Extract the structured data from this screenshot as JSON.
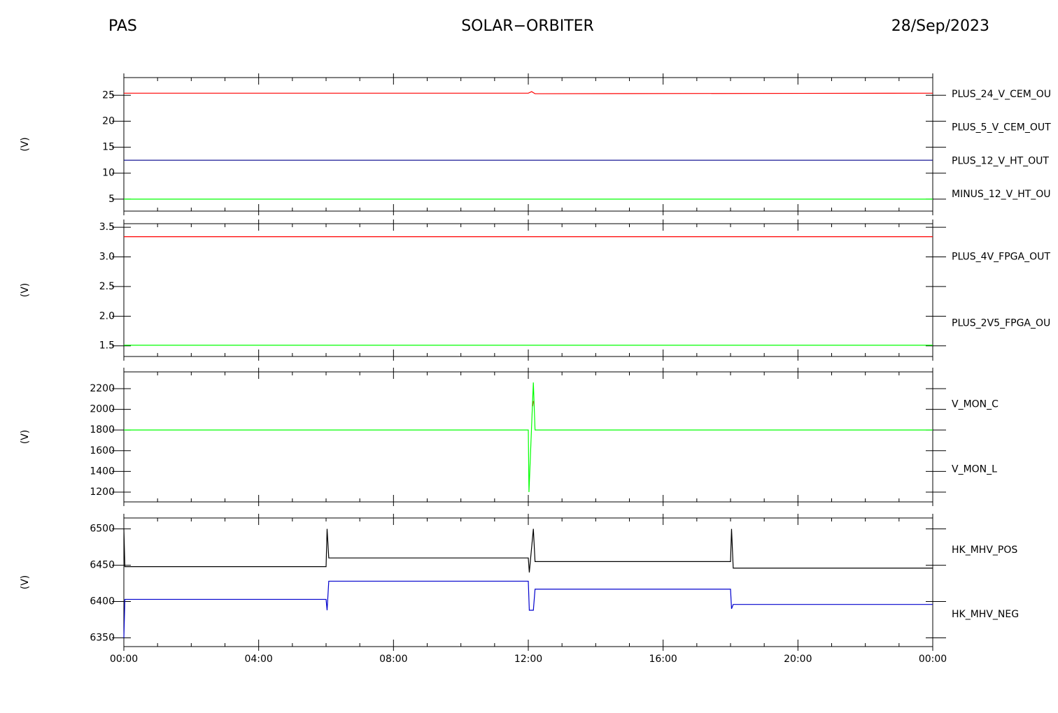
{
  "header": {
    "left": "PAS",
    "center": "SOLAR−ORBITER",
    "right": "28/Sep/2023"
  },
  "chart_data": [
    {
      "type": "line",
      "ylabel": "(V)",
      "ylim": [
        2.7,
        28.4
      ],
      "yticks": [
        5,
        10,
        15,
        20,
        25
      ],
      "x": [
        0,
        12,
        12.1,
        12.2,
        24
      ],
      "series": [
        {
          "name": "PLUS_24_V_CEM_OU",
          "color": "#ff0000",
          "values": [
            25.4,
            25.4,
            25.7,
            25.3,
            25.4
          ]
        },
        {
          "name": "PLUS_5_V_CEM_OUT",
          "color": "#00ff00",
          "values": [
            5,
            5,
            5,
            5,
            5
          ]
        },
        {
          "name": "PLUS_12_V_HT_OUT",
          "color": "#00008b",
          "values": [
            12.5,
            12.5,
            12.5,
            12.5,
            12.5
          ]
        },
        {
          "name": "MINUS_12_V_HT_OU",
          "color": "#000000",
          "values": [
            null,
            null,
            null,
            null,
            null
          ]
        }
      ]
    },
    {
      "type": "line",
      "ylabel": "(V)",
      "ylim": [
        1.32,
        3.56
      ],
      "yticks": [
        1.5,
        {
          "value": 2,
          "label": "2.0"
        },
        2.5,
        {
          "value": 3,
          "label": "3.0"
        },
        3.5
      ],
      "x": [
        0,
        24
      ],
      "series": [
        {
          "name": "PLUS_4V_FPGA_OUT",
          "color": "#ff0000",
          "values": [
            3.34,
            3.34
          ]
        },
        {
          "name": "PLUS_2V5_FPGA_OU",
          "color": "#00ff00",
          "values": [
            1.51,
            1.51
          ]
        }
      ]
    },
    {
      "type": "line",
      "ylabel": "(V)",
      "ylim": [
        1105,
        2362
      ],
      "yticks": [
        1200,
        1400,
        1600,
        1800,
        2000,
        2200
      ],
      "x": [
        0,
        12,
        12.02,
        12.13,
        12.15,
        12.2,
        24
      ],
      "series": [
        {
          "name": "V_MON_C",
          "color": "#ff0000",
          "values": [
            null,
            null,
            null,
            2030,
            2080,
            null,
            null
          ]
        },
        {
          "name": "V_MON_L",
          "color": "#00ff00",
          "values": [
            1800,
            1800,
            1200,
            2100,
            2260,
            1800,
            1800
          ]
        }
      ]
    },
    {
      "type": "line",
      "ylabel": "(V)",
      "ylim": [
        6338,
        6515
      ],
      "yticks": [
        6350,
        6400,
        6450,
        6500
      ],
      "xlim": [
        0,
        24
      ],
      "xticks": [
        {
          "value": 0,
          "label": "00:00"
        },
        {
          "value": 4,
          "label": "04:00"
        },
        {
          "value": 8,
          "label": "08:00"
        },
        {
          "value": 12,
          "label": "12:00"
        },
        {
          "value": 16,
          "label": "16:00"
        },
        {
          "value": 20,
          "label": "20:00"
        },
        {
          "value": 24,
          "label": "00:00"
        }
      ],
      "xminorticks": [
        1,
        2,
        3,
        5,
        6,
        7,
        9,
        10,
        11,
        13,
        14,
        15,
        17,
        18,
        19,
        21,
        22,
        23
      ],
      "x": [
        0,
        0.03,
        6.0,
        6.03,
        6.08,
        12.0,
        12.03,
        12.15,
        12.2,
        18.0,
        18.03,
        18.08,
        24
      ],
      "series": [
        {
          "name": "HK_MHV_POS",
          "color": "#000000",
          "values": [
            6500,
            6448,
            6448,
            6500,
            6460,
            6460,
            6440,
            6500,
            6455,
            6455,
            6500,
            6446,
            6446
          ]
        },
        {
          "name": "HK_MHV_NEG",
          "color": "#0000cd",
          "values": [
            6350,
            6403,
            6403,
            6388,
            6428,
            6428,
            6388,
            6388,
            6417,
            6417,
            6390,
            6396,
            6396
          ]
        }
      ]
    }
  ]
}
